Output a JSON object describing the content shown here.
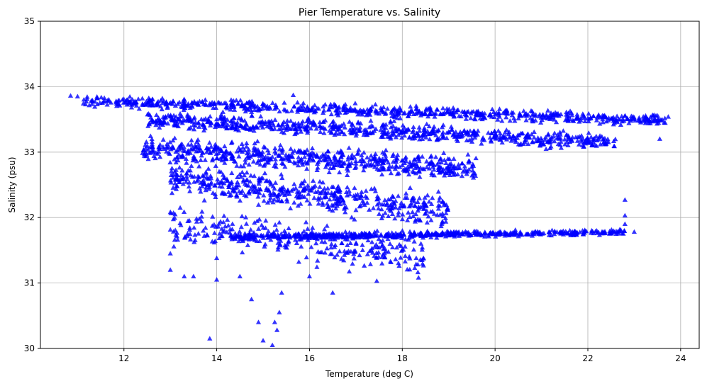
{
  "chart_data": {
    "type": "scatter",
    "title": "Pier Temperature vs. Salinity",
    "xlabel": "Temperature (deg C)",
    "ylabel": "Salinity (psu)",
    "xlim": [
      10.2,
      24.4
    ],
    "ylim": [
      30,
      35
    ],
    "xticks": [
      "12",
      "14",
      "16",
      "18",
      "20",
      "22",
      "24"
    ],
    "yticks": [
      "30",
      "31",
      "32",
      "33",
      "34",
      "35"
    ],
    "grid": true,
    "marker": "triangle",
    "color": "#0000ff",
    "points": [
      [
        10.85,
        33.86
      ],
      [
        11.0,
        33.85
      ],
      [
        15.65,
        33.87
      ],
      [
        23.55,
        33.2
      ],
      [
        22.8,
        32.27
      ],
      [
        22.8,
        32.03
      ],
      [
        22.8,
        31.9
      ],
      [
        23.0,
        31.78
      ],
      [
        18.35,
        31.08
      ],
      [
        13.85,
        30.15
      ],
      [
        15.2,
        30.05
      ],
      [
        15.0,
        30.12
      ],
      [
        14.9,
        30.4
      ],
      [
        15.35,
        30.55
      ],
      [
        15.3,
        30.28
      ],
      [
        15.25,
        30.4
      ],
      [
        14.75,
        30.75
      ],
      [
        15.4,
        30.85
      ],
      [
        13.0,
        31.2
      ],
      [
        13.0,
        31.45
      ],
      [
        14.0,
        31.05
      ],
      [
        13.5,
        31.1
      ],
      [
        13.3,
        31.1
      ],
      [
        16.5,
        30.85
      ],
      [
        17.45,
        31.03
      ],
      [
        14.0,
        31.38
      ],
      [
        14.5,
        31.1
      ],
      [
        16.0,
        31.1
      ]
    ],
    "clusters": [
      {
        "xmin": 11.1,
        "xmax": 23.8,
        "y_start": 33.78,
        "y_end": 33.48,
        "spread": 0.12,
        "n": 700
      },
      {
        "xmin": 12.5,
        "xmax": 22.6,
        "y_start": 33.5,
        "y_end": 33.15,
        "spread": 0.18,
        "n": 700
      },
      {
        "xmin": 12.4,
        "xmax": 19.6,
        "y_start": 33.05,
        "y_end": 32.75,
        "spread": 0.25,
        "n": 600
      },
      {
        "xmin": 13.0,
        "xmax": 19.0,
        "y_start": 32.6,
        "y_end": 32.1,
        "spread": 0.35,
        "n": 500
      },
      {
        "xmin": 14.3,
        "xmax": 22.8,
        "y_start": 31.7,
        "y_end": 31.78,
        "spread": 0.06,
        "n": 550
      },
      {
        "xmin": 13.0,
        "xmax": 18.5,
        "y_start": 31.9,
        "y_end": 31.4,
        "spread": 0.4,
        "n": 300
      }
    ]
  }
}
